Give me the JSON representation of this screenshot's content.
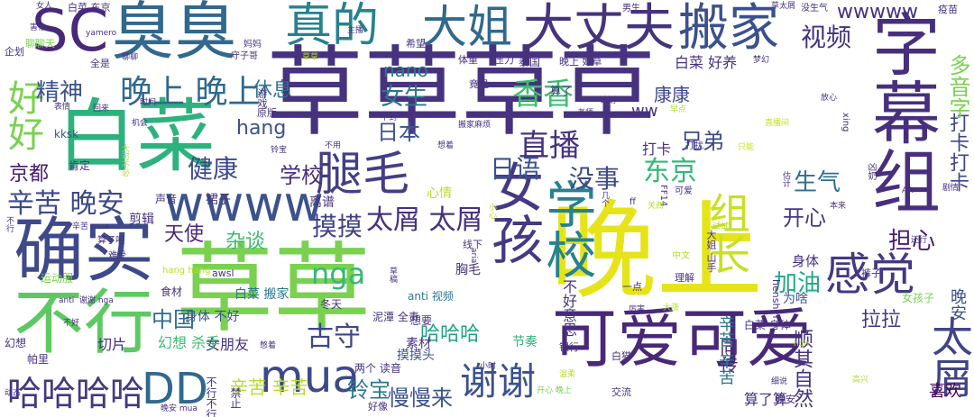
{
  "word_cloud": {
    "words": [
      {
        "text": "草草草草",
        "color": "#46327e"
      },
      {
        "text": "晚上",
        "color": "#e6e419"
      },
      {
        "text": "草草",
        "color": "#7ad151"
      },
      {
        "text": "白菜",
        "color": "#2db27d"
      },
      {
        "text": "可爱可爱",
        "color": "#482878"
      },
      {
        "text": "臭臭",
        "color": "#31688e"
      },
      {
        "text": "SC",
        "color": "#482878"
      },
      {
        "text": "确实",
        "color": "#3e4989"
      },
      {
        "text": "不行",
        "color": "#5ec962"
      },
      {
        "text": "女孩",
        "color": "#443983"
      },
      {
        "text": "字幕组",
        "color": "#472f7d"
      },
      {
        "text": "腿毛",
        "color": "#433e85"
      },
      {
        "text": "大丈夫",
        "color": "#46337e"
      },
      {
        "text": "搬家",
        "color": "#3b518b"
      },
      {
        "text": "wwww",
        "color": "#3b528b"
      },
      {
        "text": "组长",
        "color": "#c8e020"
      },
      {
        "text": "大姐",
        "color": "#31688e"
      },
      {
        "text": "真的",
        "color": "#26828e"
      },
      {
        "text": "学校",
        "color": "#26828e"
      },
      {
        "text": "感觉",
        "color": "#443983"
      },
      {
        "text": "太屑",
        "color": "#414487"
      },
      {
        "text": "mua",
        "color": "#3e4989"
      },
      {
        "text": "DD",
        "color": "#31688e"
      },
      {
        "text": "哈哈哈哈",
        "color": "#453781"
      },
      {
        "text": "谢谢",
        "color": "#3b528b"
      },
      {
        "text": "好好",
        "color": "#7ad151"
      },
      {
        "text": "晚上 晚上",
        "color": "#31688e"
      },
      {
        "text": "精神",
        "color": "#3b518b"
      },
      {
        "text": "休息",
        "color": "#2c728e"
      },
      {
        "text": "视频",
        "color": "#46337e"
      },
      {
        "text": "直播",
        "color": "#46327e"
      },
      {
        "text": "香香",
        "color": "#3fbc73"
      },
      {
        "text": "女生",
        "color": "#2a788e"
      },
      {
        "text": "日本",
        "color": "#3a548c"
      },
      {
        "text": "日语",
        "color": "#3a548c"
      },
      {
        "text": "没事",
        "color": "#3e4a89"
      },
      {
        "text": "东京",
        "color": "#35b779"
      },
      {
        "text": "健康",
        "color": "#3e4989"
      },
      {
        "text": "学校",
        "color": "#472c7a"
      },
      {
        "text": "辛苦 晚安",
        "color": "#3e4989"
      },
      {
        "text": "京都",
        "color": "#481b6d"
      },
      {
        "text": "摸摸",
        "color": "#424186"
      },
      {
        "text": "太屑 太屑",
        "color": "#46327e"
      },
      {
        "text": "nga",
        "color": "#35b779"
      },
      {
        "text": "古守",
        "color": "#404688"
      },
      {
        "text": "中国",
        "color": "#2f6c8e"
      },
      {
        "text": "天使",
        "color": "#482677"
      },
      {
        "text": "杂谈",
        "color": "#3fbc73"
      },
      {
        "text": "开心",
        "color": "#443a83"
      },
      {
        "text": "生气",
        "color": "#2d708e"
      },
      {
        "text": "兄弟",
        "color": "#3e4989"
      },
      {
        "text": "康康",
        "color": "#3f4889"
      },
      {
        "text": "加油",
        "color": "#22a884"
      },
      {
        "text": "担心",
        "color": "#481d6f"
      },
      {
        "text": "拉拉",
        "color": "#443983"
      },
      {
        "text": "铃宝",
        "color": "#2a788e"
      },
      {
        "text": "慢慢来",
        "color": "#3b528b"
      },
      {
        "text": "哈哈哈",
        "color": "#20a386"
      },
      {
        "text": "辛苦 辛苦",
        "color": "#b5de2b"
      },
      {
        "text": "同传",
        "color": "#482576"
      },
      {
        "text": "顺其自然",
        "color": "#46327e"
      },
      {
        "text": "喜欢",
        "color": "#440154"
      },
      {
        "text": "晚安",
        "color": "#3c4f8a"
      },
      {
        "text": "算了算",
        "color": "#46327e"
      },
      {
        "text": "辛苦 辛苦",
        "color": "#2a788e"
      },
      {
        "text": "打卡打卡",
        "color": "#404688"
      },
      {
        "text": "多音字",
        "color": "#7ad151"
      },
      {
        "text": "wwwww",
        "color": "#46327e"
      },
      {
        "text": "nano",
        "color": "#2a788e"
      },
      {
        "text": "hang",
        "color": "#3b528b"
      },
      {
        "text": "ww",
        "color": "#46327e"
      },
      {
        "text": "打卡",
        "color": "#46327e"
      },
      {
        "text": "白菜 好养",
        "color": "#46327e"
      },
      {
        "text": "身体",
        "color": "#46327e"
      },
      {
        "text": "女朋友",
        "color": "#46327e"
      },
      {
        "text": "幻想 杀手",
        "color": "#3fbc73"
      },
      {
        "text": "身体 不好",
        "color": "#3b528b"
      },
      {
        "text": "白菜 搬家",
        "color": "#2a788e"
      },
      {
        "text": "为啥",
        "color": "#3b528b"
      },
      {
        "text": "不好意思",
        "color": "#46327e"
      },
      {
        "text": "剪辑",
        "color": "#46327e"
      },
      {
        "text": "裙子",
        "color": "#46327e"
      },
      {
        "text": "肯定",
        "color": "#46327e"
      },
      {
        "text": "kksk",
        "color": "#3b528b"
      },
      {
        "text": "摸摸头",
        "color": "#3b528b"
      },
      {
        "text": "切片",
        "color": "#46327e"
      },
      {
        "text": "素材",
        "color": "#46327e"
      },
      {
        "text": "胸毛",
        "color": "#46327e"
      },
      {
        "text": "节奏",
        "color": "#2db27d"
      },
      {
        "text": "食材",
        "color": "#46327e"
      },
      {
        "text": "运动服",
        "color": "#7ad151"
      },
      {
        "text": "心情",
        "color": "#b5de2b"
      },
      {
        "text": "离谱",
        "color": "#46327e"
      },
      {
        "text": "声音",
        "color": "#46327e"
      },
      {
        "text": "帕里",
        "color": "#46327e"
      },
      {
        "text": "幻想",
        "color": "#46327e"
      },
      {
        "text": "禁止",
        "color": "#46327e"
      },
      {
        "text": "不行不行",
        "color": "#46327e"
      },
      {
        "text": "两个 读音",
        "color": "#46327e"
      },
      {
        "text": "泥潭 全责",
        "color": "#46327e"
      },
      {
        "text": "想要",
        "color": "#46327e"
      },
      {
        "text": "冬天",
        "color": "#46327e"
      },
      {
        "text": "anti 视频",
        "color": "#2a788e"
      },
      {
        "text": "女孩子",
        "color": "#7ad151"
      },
      {
        "text": "全是",
        "color": "#46327e"
      },
      {
        "text": "希望",
        "color": "#46327e"
      },
      {
        "text": "泰国",
        "color": "#46327e"
      },
      {
        "text": "算了",
        "color": "#46327e"
      },
      {
        "text": "晚上 好草",
        "color": "#46327e"
      },
      {
        "text": "体重",
        "color": "#46327e"
      },
      {
        "text": "压力",
        "color": "#46327e"
      },
      {
        "text": "竟是",
        "color": "#46327e"
      },
      {
        "text": "游戏",
        "color": "#46327e"
      },
      {
        "text": "原版",
        "color": "#46327e"
      },
      {
        "text": "聊聊天",
        "color": "#7ad151"
      },
      {
        "text": "企划",
        "color": "#46327e"
      },
      {
        "text": "疫苗",
        "color": "#46327e"
      },
      {
        "text": "没生气",
        "color": "#46327e"
      },
      {
        "text": "男生",
        "color": "#46327e"
      },
      {
        "text": "白菜 东京",
        "color": "#46327e"
      },
      {
        "text": "守子哥",
        "color": "#46327e"
      },
      {
        "text": "妈妈",
        "color": "#46327e"
      },
      {
        "text": "大姐 山手",
        "color": "#46327e"
      },
      {
        "text": "算了吧",
        "color": "#46327e"
      },
      {
        "text": "难受",
        "color": "#46327e"
      },
      {
        "text": "hang hang",
        "color": "#b5de2b"
      },
      {
        "text": "awsl",
        "color": "#46327e"
      },
      {
        "text": "henshin",
        "color": "#46327e"
      },
      {
        "text": "一点",
        "color": "#46327e"
      },
      {
        "text": "理解",
        "color": "#46327e"
      },
      {
        "text": "银行",
        "color": "#46327e"
      },
      {
        "text": "白猫",
        "color": "#46327e"
      },
      {
        "text": "交流",
        "color": "#46327e"
      },
      {
        "text": "好像",
        "color": "#46327e"
      },
      {
        "text": "线下",
        "color": "#46327e"
      },
      {
        "text": "中文",
        "color": "#b5de2b"
      },
      {
        "text": "白菜 身体",
        "color": "#46327e"
      },
      {
        "text": "晚安",
        "color": "#46327e"
      },
      {
        "text": "裤子",
        "color": "#46327e"
      },
      {
        "text": "xing",
        "color": "#46327e"
      },
      {
        "text": "打扰",
        "color": "#46327e"
      },
      {
        "text": "凶奶",
        "color": "#46327e"
      },
      {
        "text": "ff",
        "color": "#46327e"
      },
      {
        "text": "FF14",
        "color": "#46327e"
      },
      {
        "text": "可爱",
        "color": "#46327e"
      },
      {
        "text": "晚安 mua",
        "color": "#46327e"
      },
      {
        "text": "开心 晚上",
        "color": "#7ad151"
      },
      {
        "text": "aria",
        "color": "#46327e"
      },
      {
        "text": "几个",
        "color": "#46327e"
      },
      {
        "text": "温柔",
        "color": "#b5de2b"
      },
      {
        "text": "小时",
        "color": "#46327e"
      },
      {
        "text": "不用",
        "color": "#46327e"
      },
      {
        "text": "想着",
        "color": "#46327e"
      },
      {
        "text": "搬家麻烦",
        "color": "#46327e"
      },
      {
        "text": "不到",
        "color": "#46327e"
      },
      {
        "text": "表情",
        "color": "#46327e"
      },
      {
        "text": "回来",
        "color": "#46327e"
      },
      {
        "text": "机会",
        "color": "#46327e"
      },
      {
        "text": "聊聊",
        "color": "#46327e"
      },
      {
        "text": "动态",
        "color": "#46327e"
      },
      {
        "text": "女人",
        "color": "#46327e"
      },
      {
        "text": "放心",
        "color": "#46327e"
      },
      {
        "text": "老师",
        "color": "#46327e"
      },
      {
        "text": "计划",
        "color": "#46327e"
      },
      {
        "text": "铃宝",
        "color": "#46327e"
      },
      {
        "text": "梦幻",
        "color": "#46327e"
      },
      {
        "text": "草太屑",
        "color": "#46327e"
      },
      {
        "text": "剧情",
        "color": "#46327e"
      },
      {
        "text": "AA",
        "color": "#46327e"
      },
      {
        "text": "还行",
        "color": "#46327e"
      },
      {
        "text": "只能",
        "color": "#c8e020"
      },
      {
        "text": "直播间",
        "color": "#c8e020"
      },
      {
        "text": "关西",
        "color": "#b5de2b"
      },
      {
        "text": "估计",
        "color": "#46327e"
      },
      {
        "text": "yamero",
        "color": "#46327e"
      },
      {
        "text": "不好",
        "color": "#46327e"
      },
      {
        "text": "憋着",
        "color": "#46327e"
      },
      {
        "text": "谢谢 nga",
        "color": "#46327e"
      },
      {
        "text": "辛苦 mua",
        "color": "#46327e"
      },
      {
        "text": "不行",
        "color": "#46327e"
      },
      {
        "text": "anti",
        "color": "#46327e"
      },
      {
        "text": "高兴",
        "color": "#b5de2b"
      },
      {
        "text": "草草",
        "color": "#b5de2b"
      },
      {
        "text": "hgh",
        "color": "#b5de2b"
      },
      {
        "text": "大可不必",
        "color": "#b5de2b"
      },
      {
        "text": "小心",
        "color": "#b5de2b"
      },
      {
        "text": "试试",
        "color": "#b5de2b"
      },
      {
        "text": "早点",
        "color": "#b5de2b"
      },
      {
        "text": "大涨",
        "color": "#b5de2b"
      },
      {
        "text": "细说",
        "color": "#46327e"
      },
      {
        "text": "本来",
        "color": "#46327e"
      },
      {
        "text": "厉害",
        "color": "#46327e"
      },
      {
        "text": "主播",
        "color": "#46327e"
      },
      {
        "text": "时间",
        "color": "#46327e"
      },
      {
        "text": "草稿",
        "color": "#46327e"
      },
      {
        "text": "害怕",
        "color": "#46327e"
      },
      {
        "text": "不行",
        "color": "#46327e"
      },
      {
        "text": "欧欧",
        "color": "#46327e"
      }
    ]
  }
}
